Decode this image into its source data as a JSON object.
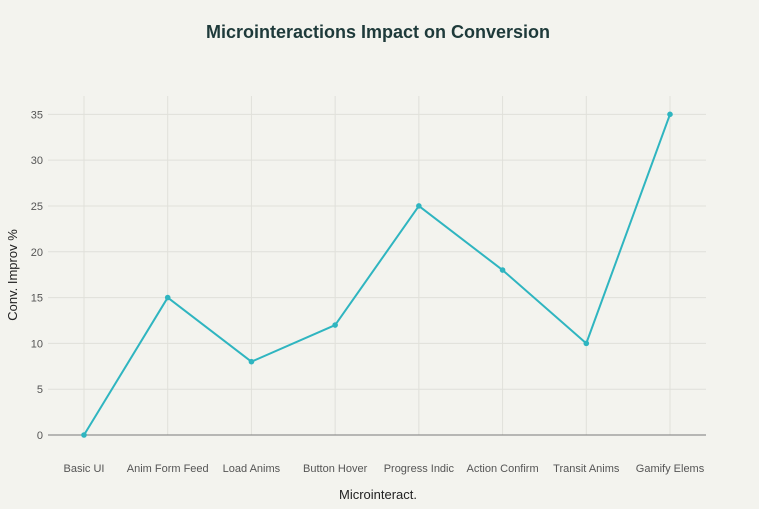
{
  "chart_data": {
    "type": "line",
    "title": "Microinteractions Impact on Conversion",
    "xlabel": "Microinteract.",
    "ylabel": "Conv. Improv %",
    "categories": [
      "Basic UI",
      "Anim Form Feed",
      "Load Anims",
      "Button Hover",
      "Progress Indic",
      "Action Confirm",
      "Transit Anims",
      "Gamify Elems"
    ],
    "series": [
      {
        "values": [
          0,
          15,
          8,
          12,
          25,
          18,
          10,
          35
        ]
      }
    ],
    "ylim": [
      0,
      37
    ],
    "yticks": [
      0,
      5,
      10,
      15,
      20,
      25,
      30,
      35
    ],
    "grid": true,
    "legend": "none",
    "colors": {
      "line": "#2fb5c0",
      "background": "#f3f3ee"
    }
  }
}
